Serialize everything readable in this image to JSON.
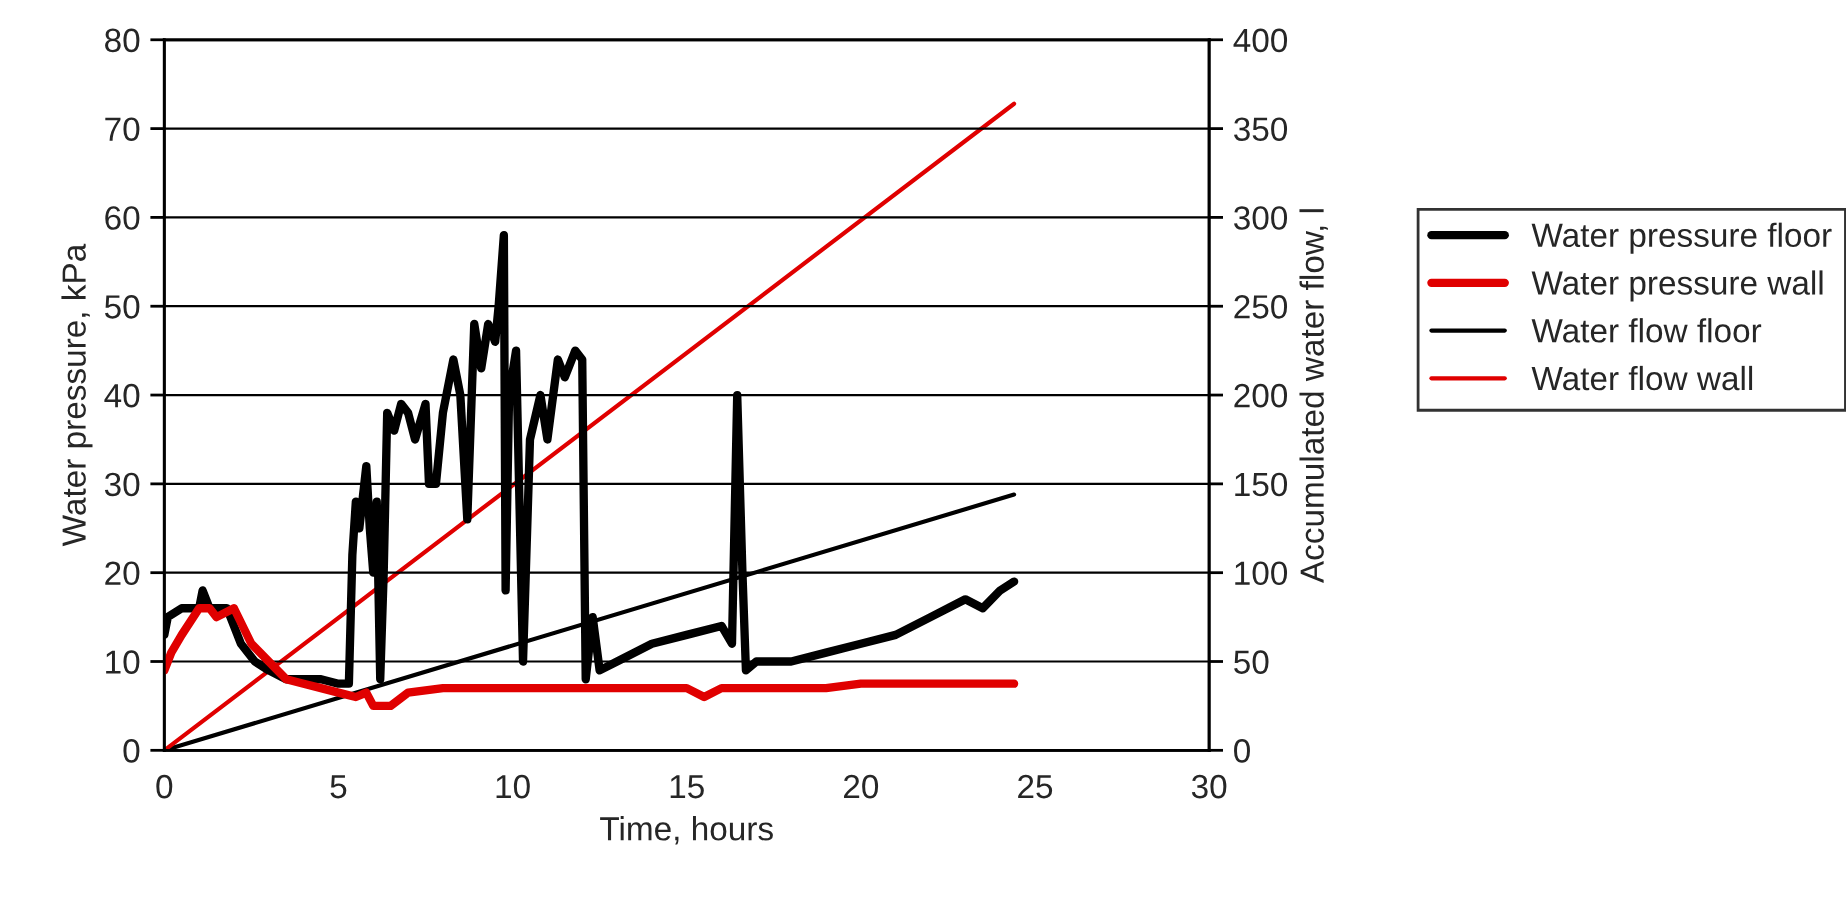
{
  "chart_data": {
    "type": "line",
    "xlabel": "Time, hours",
    "ylabel": "Water pressure, kPa",
    "y2label": "Accumulated water flow, l",
    "xlim": [
      0,
      30
    ],
    "xticks": [
      0,
      5,
      10,
      15,
      20,
      25,
      30
    ],
    "ylim": [
      0,
      80
    ],
    "yticks": [
      0,
      10,
      20,
      30,
      40,
      50,
      60,
      70,
      80
    ],
    "y2lim": [
      0,
      400
    ],
    "y2ticks": [
      0,
      50,
      100,
      150,
      200,
      250,
      300,
      350,
      400
    ],
    "grid": "y",
    "legend": "right",
    "marker": "none",
    "line_style": "solid",
    "series": [
      {
        "name": "Water pressure floor",
        "color": "#000000",
        "x": [
          0,
          0.1,
          0.5,
          1.0,
          1.1,
          1.3,
          1.8,
          2.2,
          2.6,
          3.0,
          3.5,
          4.0,
          4.5,
          5.0,
          5.3,
          5.4,
          5.5,
          5.6,
          5.8,
          5.9,
          6.0,
          6.1,
          6.2,
          6.3,
          6.4,
          6.6,
          6.8,
          7.0,
          7.2,
          7.5,
          7.6,
          7.8,
          8.0,
          8.3,
          8.5,
          8.7,
          8.9,
          9.1,
          9.3,
          9.5,
          9.6,
          9.75,
          9.8,
          9.9,
          10.1,
          10.3,
          10.5,
          10.8,
          11.0,
          11.3,
          11.5,
          11.8,
          12.0,
          12.1,
          12.3,
          12.5,
          13,
          14,
          15,
          16,
          16.3,
          16.45,
          16.6,
          16.7,
          17,
          18,
          19,
          20,
          21,
          22,
          23,
          23.5,
          24,
          24.4
        ],
        "values": [
          13,
          15,
          16,
          16,
          18,
          16,
          16,
          12,
          10,
          9,
          8,
          8,
          8,
          7.5,
          7.5,
          22,
          28,
          25,
          32,
          25,
          20,
          28,
          8,
          20,
          38,
          36,
          39,
          38,
          35,
          39,
          30,
          30,
          38,
          44,
          40,
          26,
          48,
          43,
          48,
          46,
          50,
          58,
          18,
          40,
          45,
          10,
          35,
          40,
          35,
          44,
          42,
          45,
          44,
          8,
          15,
          9,
          10,
          12,
          13,
          14,
          12,
          40,
          20,
          9,
          10,
          10,
          11,
          12,
          13,
          15,
          17,
          16,
          18,
          19
        ]
      },
      {
        "name": "Water pressure wall",
        "color": "#e00000",
        "x": [
          0,
          0.2,
          0.5,
          1.0,
          1.3,
          1.5,
          2.0,
          2.5,
          3.0,
          3.5,
          4.0,
          4.5,
          5.0,
          5.5,
          5.8,
          6.0,
          6.5,
          7.0,
          8,
          10,
          12,
          14,
          15,
          15.5,
          16,
          18,
          19,
          20,
          22,
          24.4
        ],
        "values": [
          9,
          11,
          13,
          16,
          16,
          15,
          16,
          12,
          10,
          8,
          7.5,
          7,
          6.5,
          6,
          6.5,
          5,
          5,
          6.5,
          7,
          7,
          7,
          7,
          7,
          6,
          7,
          7,
          7,
          7.5,
          7.5,
          7.5
        ]
      },
      {
        "name": "Water flow floor",
        "color": "#000000",
        "axis": "y2",
        "x": [
          0,
          24.4
        ],
        "values": [
          0,
          144
        ]
      },
      {
        "name": "Water flow wall",
        "color": "#e00000",
        "axis": "y2",
        "x": [
          0,
          24.4
        ],
        "values": [
          0,
          364
        ]
      }
    ]
  }
}
